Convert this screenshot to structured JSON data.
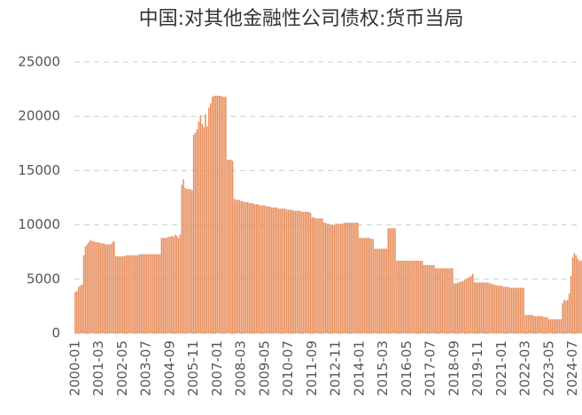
{
  "chart_data": {
    "type": "bar",
    "title": "中国:对其他金融性公司债权:货币当局",
    "categories": [
      "2000-01",
      null,
      null,
      null,
      null,
      null,
      null,
      null,
      null,
      null,
      null,
      null,
      null,
      null,
      "2001-03",
      null,
      null,
      null,
      null,
      null,
      null,
      null,
      null,
      null,
      null,
      null,
      null,
      null,
      "2002-05",
      null,
      null,
      null,
      null,
      null,
      null,
      null,
      null,
      null,
      null,
      null,
      null,
      null,
      "2003-07",
      null,
      null,
      null,
      null,
      null,
      null,
      null,
      null,
      null,
      null,
      null,
      null,
      null,
      "2004-09",
      null,
      null,
      null,
      null,
      null,
      null,
      null,
      null,
      null,
      null,
      null,
      null,
      null,
      "2005-11",
      null,
      null,
      null,
      null,
      null,
      null,
      null,
      null,
      null,
      null,
      null,
      null,
      null,
      "2007-01",
      null,
      null,
      null,
      null,
      null,
      null,
      null,
      null,
      null,
      null,
      null,
      null,
      null,
      "2008-03",
      null,
      null,
      null,
      null,
      null,
      null,
      null,
      null,
      null,
      null,
      null,
      null,
      null,
      "2009-05",
      null,
      null,
      null,
      null,
      null,
      null,
      null,
      null,
      null,
      null,
      null,
      null,
      null,
      "2010-07",
      null,
      null,
      null,
      null,
      null,
      null,
      null,
      null,
      null,
      null,
      null,
      null,
      null,
      "2011-09",
      null,
      null,
      null,
      null,
      null,
      null,
      null,
      null,
      null,
      null,
      null,
      null,
      null,
      "2012-11",
      null,
      null,
      null,
      null,
      null,
      null,
      null,
      null,
      null,
      null,
      null,
      null,
      null,
      "2014-01",
      null,
      null,
      null,
      null,
      null,
      null,
      null,
      null,
      null,
      null,
      null,
      null,
      null,
      "2015-03",
      null,
      null,
      null,
      null,
      null,
      null,
      null,
      null,
      null,
      null,
      null,
      null,
      null,
      "2016-05",
      null,
      null,
      null,
      null,
      null,
      null,
      null,
      null,
      null,
      null,
      null,
      null,
      null,
      "2017-07",
      null,
      null,
      null,
      null,
      null,
      null,
      null,
      null,
      null,
      null,
      null,
      null,
      null,
      "2018-09",
      null,
      null,
      null,
      null,
      null,
      null,
      null,
      null,
      null,
      null,
      null,
      null,
      null,
      "2019-11",
      null,
      null,
      null,
      null,
      null,
      null,
      null,
      null,
      null,
      null,
      null,
      null,
      null,
      "2021-01",
      null,
      null,
      null,
      null,
      null,
      null,
      null,
      null,
      null,
      null,
      null,
      null,
      null,
      "2022-03",
      null,
      null,
      null,
      null,
      null,
      null,
      null,
      null,
      null,
      null,
      null,
      null,
      null,
      "2023-05",
      null,
      null,
      null,
      null,
      null,
      null,
      null,
      null,
      null,
      null,
      null,
      null,
      null,
      "2024-07",
      null,
      null,
      null,
      null,
      null
    ],
    "values": [
      3800,
      3900,
      4300,
      4400,
      4500,
      7200,
      8000,
      8200,
      8400,
      8600,
      8500,
      8500,
      8400,
      8400,
      8400,
      8300,
      8300,
      8300,
      8200,
      8200,
      8200,
      8200,
      8400,
      8500,
      7100,
      7100,
      7100,
      7100,
      7100,
      7100,
      7200,
      7200,
      7200,
      7200,
      7200,
      7200,
      7200,
      7200,
      7300,
      7300,
      7300,
      7300,
      7300,
      7300,
      7300,
      7300,
      7300,
      7300,
      7300,
      7300,
      7300,
      8800,
      8800,
      8800,
      8800,
      8900,
      8900,
      9000,
      8900,
      9100,
      9000,
      8800,
      9100,
      13700,
      14200,
      13400,
      13300,
      13300,
      13300,
      13200,
      18300,
      18500,
      18800,
      19500,
      20100,
      19300,
      19000,
      20200,
      19100,
      20800,
      21200,
      21800,
      21900,
      21900,
      21900,
      21900,
      21900,
      21800,
      21800,
      21800,
      16000,
      16000,
      16000,
      15900,
      12400,
      12300,
      12300,
      12300,
      12200,
      12200,
      12100,
      12100,
      12100,
      12000,
      12000,
      12000,
      11900,
      11900,
      11900,
      11800,
      11800,
      11800,
      11800,
      11700,
      11700,
      11700,
      11600,
      11600,
      11600,
      11600,
      11500,
      11500,
      11500,
      11500,
      11500,
      11400,
      11400,
      11400,
      11400,
      11300,
      11300,
      11300,
      11300,
      11300,
      11200,
      11200,
      11200,
      11200,
      11200,
      11100,
      10700,
      10700,
      10600,
      10600,
      10600,
      10600,
      10600,
      10200,
      10200,
      10100,
      10100,
      10000,
      10000,
      10000,
      10100,
      10100,
      10100,
      10100,
      10100,
      10200,
      10200,
      10200,
      10200,
      10200,
      10200,
      10200,
      10200,
      10200,
      8800,
      8800,
      8800,
      8800,
      8800,
      8800,
      8800,
      8700,
      8700,
      7800,
      7800,
      7800,
      7800,
      7800,
      7800,
      7800,
      7800,
      9700,
      9700,
      9700,
      9700,
      9700,
      6700,
      6700,
      6700,
      6700,
      6700,
      6700,
      6700,
      6700,
      6700,
      6700,
      6700,
      6700,
      6700,
      6700,
      6700,
      6700,
      6300,
      6300,
      6300,
      6300,
      6300,
      6300,
      6300,
      6000,
      6000,
      6000,
      6000,
      6000,
      6000,
      6000,
      6000,
      6000,
      6000,
      6000,
      4600,
      4600,
      4700,
      4700,
      4800,
      4800,
      4900,
      5000,
      5100,
      5200,
      5300,
      5500,
      4700,
      4700,
      4700,
      4700,
      4700,
      4700,
      4700,
      4700,
      4700,
      4600,
      4600,
      4500,
      4500,
      4400,
      4400,
      4400,
      4400,
      4300,
      4300,
      4300,
      4300,
      4200,
      4200,
      4200,
      4200,
      4200,
      4200,
      4200,
      4200,
      4200,
      1700,
      1700,
      1700,
      1700,
      1700,
      1600,
      1600,
      1600,
      1600,
      1600,
      1600,
      1500,
      1500,
      1500,
      1300,
      1300,
      1300,
      1300,
      1300,
      1300,
      1300,
      1300,
      2800,
      3100,
      3000,
      3100,
      3700,
      5300,
      7000,
      7400,
      7200,
      6900,
      6700,
      6700
    ],
    "color": "#e8905f",
    "ylim": [
      0,
      25000
    ],
    "yticks": [
      0,
      5000,
      10000,
      15000,
      20000,
      25000
    ],
    "grid": true
  }
}
